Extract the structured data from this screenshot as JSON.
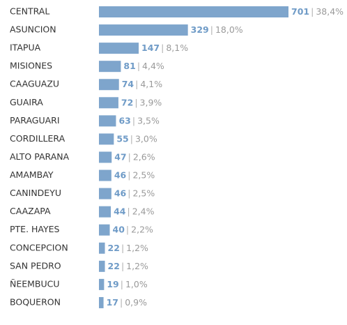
{
  "chart_data": {
    "type": "bar",
    "orientation": "horizontal",
    "color": "#7ea5cc",
    "separator": "|",
    "categories": [
      "CENTRAL",
      "ASUNCION",
      "ITAPUA",
      "MISIONES",
      "CAAGUAZU",
      "GUAIRA",
      "PARAGUARI",
      "CORDILLERA",
      "ALTO PARANA",
      "AMAMBAY",
      "CANINDEYU",
      "CAAZAPA",
      "PTE. HAYES",
      "CONCEPCION",
      "SAN PEDRO",
      "ÑEEMBUCU",
      "BOQUERON"
    ],
    "values": [
      701,
      329,
      147,
      81,
      74,
      72,
      63,
      55,
      47,
      46,
      46,
      44,
      40,
      22,
      22,
      19,
      17
    ],
    "share_labels": [
      "38,4%",
      "18,0%",
      "8,1%",
      "4,4%",
      "4,1%",
      "3,9%",
      "3,5%",
      "3,0%",
      "2,6%",
      "2,5%",
      "2,5%",
      "2,4%",
      "2,2%",
      "1,2%",
      "1,2%",
      "1,0%",
      "0,9%"
    ]
  }
}
